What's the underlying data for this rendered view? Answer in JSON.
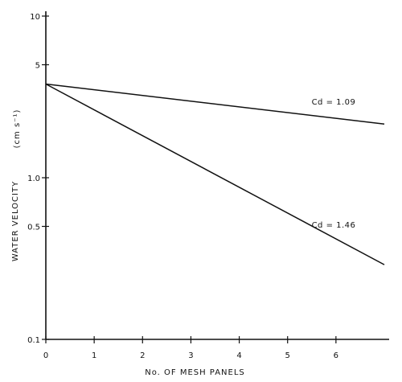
{
  "chart_data": {
    "type": "line",
    "xlabel": "No. OF MESH PANELS",
    "ylabel": "WATER VELOCITY",
    "yunit": "(cm s⁻¹)",
    "yscale": "log",
    "xlim": [
      0,
      7
    ],
    "ylim": [
      0.1,
      10
    ],
    "x_ticks": [
      0,
      1,
      2,
      3,
      4,
      5,
      6
    ],
    "y_ticks": [
      {
        "value": 0.1,
        "label": "0.1"
      },
      {
        "value": 0.5,
        "label": "0.5"
      },
      {
        "value": 1.0,
        "label": "1.0"
      },
      {
        "value": 5,
        "label": "5"
      },
      {
        "value": 10,
        "label": "10"
      }
    ],
    "grid": false,
    "series": [
      {
        "name": "Cd = 1.09",
        "x": [
          0,
          7
        ],
        "y": [
          3.8,
          2.15
        ]
      },
      {
        "name": "Cd = 1.46",
        "x": [
          0,
          7
        ],
        "y": [
          3.8,
          0.29
        ]
      }
    ]
  }
}
